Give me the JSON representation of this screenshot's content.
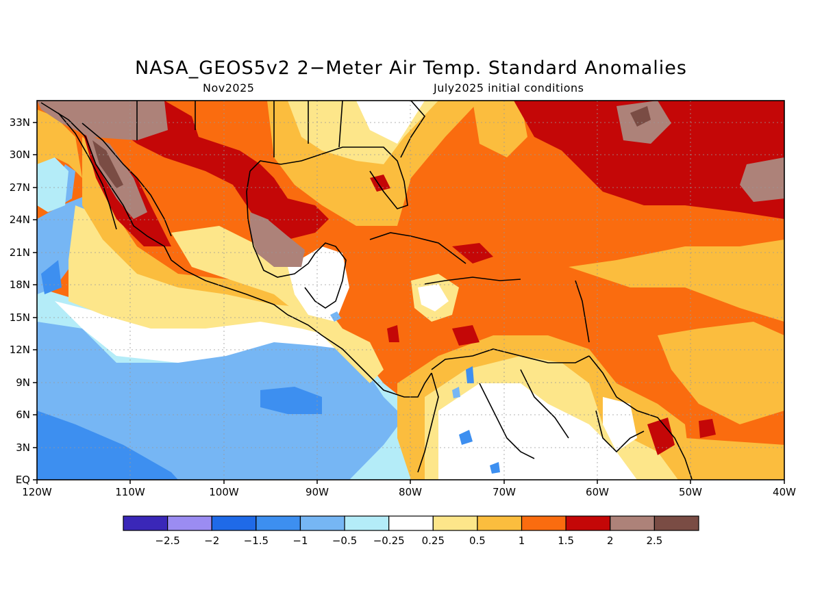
{
  "title": "NASA_GEOS5v2 2−Meter Air Temp. Standard Anomalies",
  "subtitle_left": "Nov2025",
  "subtitle_right": "July2025 initial conditions",
  "map": {
    "lon_range": [
      -120,
      -40
    ],
    "lat_range": [
      0,
      35
    ],
    "lon_ticks": [
      "120W",
      "110W",
      "100W",
      "90W",
      "80W",
      "70W",
      "60W",
      "50W",
      "40W"
    ],
    "lat_ticks": [
      "EQ",
      "3N",
      "6N",
      "9N",
      "12N",
      "15N",
      "18N",
      "21N",
      "24N",
      "27N",
      "30N",
      "33N"
    ]
  },
  "colorbar": {
    "colors": [
      "#3a27b8",
      "#9b8cf2",
      "#1f6ae8",
      "#3d8ff0",
      "#76b6f4",
      "#b4ecf8",
      "#ffffff",
      "#fde68a",
      "#fbbd3e",
      "#fa6c0f",
      "#c40707",
      "#ad8279",
      "#7a4c44"
    ],
    "labels": [
      "−2.5",
      "−2",
      "−1.5",
      "−1",
      "−0.5",
      "−0.25",
      "0.25",
      "0.5",
      "1",
      "1.5",
      "2",
      "2.5"
    ]
  }
}
